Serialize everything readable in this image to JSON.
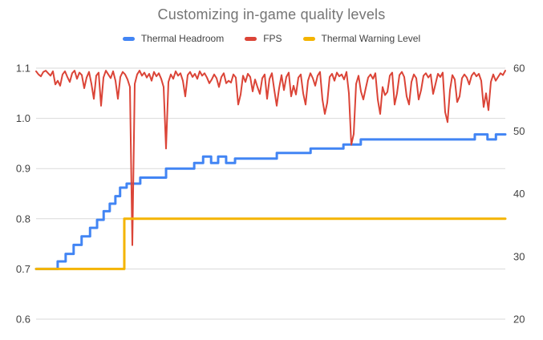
{
  "chart_data": {
    "type": "line",
    "title": "Customizing in-game quality levels",
    "xlabel": "",
    "x_axis": {
      "labels_visible": false,
      "range_pct": [
        0,
        100
      ]
    },
    "left_axis": {
      "labels": [
        "1.1",
        "1.0",
        "0.9",
        "0.8",
        "0.7",
        "0.6"
      ],
      "range": [
        0.6,
        1.1
      ]
    },
    "right_axis": {
      "labels": [
        "60",
        "50",
        "40",
        "30",
        "20"
      ],
      "range": [
        20,
        60
      ]
    },
    "grid": true,
    "legend_position": "top",
    "colors": {
      "thermal_headroom": "#4285F4",
      "fps": "#DB4437",
      "thermal_warning": "#F4B400",
      "gridline": "#DADADA",
      "axis_text": "#424242",
      "title_text": "#757575"
    },
    "series": [
      {
        "name": "Thermal Headroom",
        "axis": "left",
        "color": "#4285F4",
        "line_width": 3,
        "points": [
          [
            0,
            0.7
          ],
          [
            4.6,
            0.7
          ],
          [
            4.6,
            0.715
          ],
          [
            6.3,
            0.715
          ],
          [
            6.3,
            0.73
          ],
          [
            8.0,
            0.73
          ],
          [
            8.0,
            0.748
          ],
          [
            9.7,
            0.748
          ],
          [
            9.7,
            0.765
          ],
          [
            11.5,
            0.765
          ],
          [
            11.5,
            0.782
          ],
          [
            13.0,
            0.782
          ],
          [
            13.0,
            0.798
          ],
          [
            14.4,
            0.798
          ],
          [
            14.4,
            0.815
          ],
          [
            15.7,
            0.815
          ],
          [
            15.7,
            0.83
          ],
          [
            16.9,
            0.83
          ],
          [
            16.9,
            0.845
          ],
          [
            17.9,
            0.845
          ],
          [
            17.9,
            0.862
          ],
          [
            19.3,
            0.862
          ],
          [
            19.3,
            0.87
          ],
          [
            22.2,
            0.87
          ],
          [
            22.2,
            0.882
          ],
          [
            27.7,
            0.882
          ],
          [
            27.7,
            0.9
          ],
          [
            33.7,
            0.9
          ],
          [
            33.7,
            0.911
          ],
          [
            35.6,
            0.911
          ],
          [
            35.6,
            0.924
          ],
          [
            37.3,
            0.924
          ],
          [
            37.3,
            0.911
          ],
          [
            38.8,
            0.911
          ],
          [
            38.8,
            0.924
          ],
          [
            40.5,
            0.924
          ],
          [
            40.5,
            0.911
          ],
          [
            42.4,
            0.911
          ],
          [
            42.4,
            0.92
          ],
          [
            51.3,
            0.92
          ],
          [
            51.3,
            0.931
          ],
          [
            58.5,
            0.931
          ],
          [
            58.5,
            0.94
          ],
          [
            65.5,
            0.94
          ],
          [
            65.5,
            0.948
          ],
          [
            69.2,
            0.948
          ],
          [
            69.2,
            0.958
          ],
          [
            93.5,
            0.958
          ],
          [
            93.5,
            0.968
          ],
          [
            96.2,
            0.968
          ],
          [
            96.2,
            0.958
          ],
          [
            98.0,
            0.958
          ],
          [
            98.0,
            0.968
          ],
          [
            100,
            0.968
          ]
        ]
      },
      {
        "name": "FPS",
        "axis": "right",
        "color": "#DB4437",
        "line_width": 2,
        "values": [
          59.5,
          59.0,
          58.7,
          59.4,
          59.6,
          59.2,
          58.8,
          59.5,
          57.4,
          58.0,
          57.2,
          59.0,
          59.5,
          58.6,
          57.8,
          59.2,
          59.6,
          58.3,
          59.3,
          58.9,
          56.8,
          58.5,
          59.4,
          57.5,
          55.1,
          58.8,
          59.3,
          54.0,
          58.5,
          59.6,
          59.0,
          58.4,
          59.5,
          58.0,
          55.1,
          58.6,
          59.4,
          59.0,
          58.2,
          57.0,
          31.8,
          57.5,
          59.0,
          59.6,
          58.8,
          59.3,
          58.5,
          59.1,
          58.0,
          59.4,
          58.7,
          59.2,
          58.3,
          57.0,
          47.2,
          57.8,
          59.0,
          58.3,
          59.5,
          58.8,
          59.2,
          58.0,
          55.5,
          58.9,
          59.4,
          58.6,
          59.1,
          58.3,
          59.5,
          58.8,
          59.2,
          58.5,
          57.6,
          58.2,
          59.0,
          58.4,
          57.0,
          58.6,
          59.2,
          57.6,
          58.0,
          57.7,
          59.0,
          58.5,
          54.2,
          55.8,
          58.8,
          57.8,
          59.1,
          58.6,
          56.3,
          58.2,
          57.0,
          55.9,
          58.4,
          59.0,
          55.1,
          58.3,
          59.2,
          56.5,
          54.0,
          56.8,
          58.9,
          56.5,
          58.6,
          59.3,
          55.5,
          57.2,
          55.8,
          58.5,
          59.0,
          56.0,
          54.2,
          58.0,
          59.2,
          58.4,
          57.2,
          58.8,
          59.4,
          55.0,
          52.7,
          54.5,
          58.6,
          59.1,
          58.0,
          59.3,
          58.7,
          59.0,
          58.2,
          59.4,
          56.0,
          47.8,
          49.5,
          57.5,
          58.8,
          56.3,
          55.0,
          56.8,
          58.5,
          59.0,
          58.3,
          59.2,
          55.0,
          52.7,
          57.0,
          55.7,
          56.2,
          58.8,
          59.3,
          54.2,
          56.0,
          58.9,
          59.4,
          58.6,
          55.5,
          54.2,
          57.8,
          59.0,
          58.4,
          55.0,
          56.5,
          58.8,
          59.2,
          58.5,
          59.0,
          55.9,
          57.5,
          59.1,
          58.6,
          59.3,
          53.0,
          51.4,
          56.5,
          58.9,
          58.2,
          54.6,
          55.5,
          58.4,
          59.0,
          58.5,
          57.4,
          58.8,
          59.3,
          58.7,
          59.1,
          58.0,
          53.8,
          56.0,
          53.3,
          57.8,
          59.0,
          58.0,
          58.6,
          59.2,
          58.9,
          59.6
        ]
      },
      {
        "name": "Thermal Warning Level",
        "axis": "left",
        "color": "#F4B400",
        "line_width": 3,
        "points": [
          [
            0,
            0.7
          ],
          [
            18.8,
            0.7
          ],
          [
            18.8,
            0.8
          ],
          [
            100,
            0.8
          ]
        ]
      }
    ]
  }
}
